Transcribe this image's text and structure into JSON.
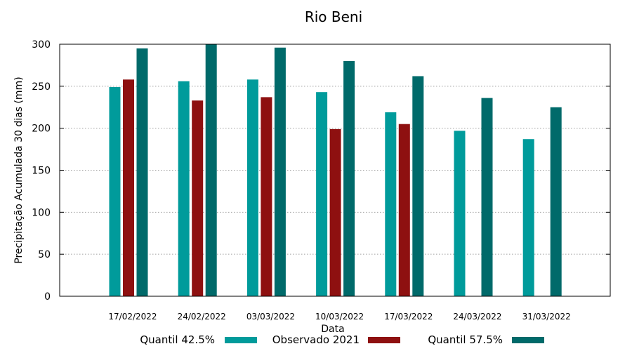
{
  "chart_data": {
    "type": "bar",
    "title": "Rio Beni",
    "xlabel": "Data",
    "ylabel": "Precipitação Acumulada 30 dias (mm)",
    "ylim": [
      0,
      300
    ],
    "yticks": [
      0,
      50,
      100,
      150,
      200,
      250,
      300
    ],
    "grid": true,
    "legend_position": "bottom",
    "categories": [
      "17/02/2022",
      "24/02/2022",
      "03/03/2022",
      "10/03/2022",
      "17/03/2022",
      "24/03/2022",
      "31/03/2022"
    ],
    "series": [
      {
        "name": "Quantil 42.5%",
        "color": "#009b9b",
        "values": [
          249,
          256,
          258,
          243,
          219,
          197,
          187
        ]
      },
      {
        "name": "Observado 2021",
        "color": "#8e1010",
        "values": [
          258,
          233,
          237,
          199,
          205,
          null,
          null
        ]
      },
      {
        "name": "Quantil 57.5%",
        "color": "#006a6a",
        "values": [
          295,
          300,
          296,
          280,
          262,
          236,
          225
        ]
      }
    ]
  }
}
